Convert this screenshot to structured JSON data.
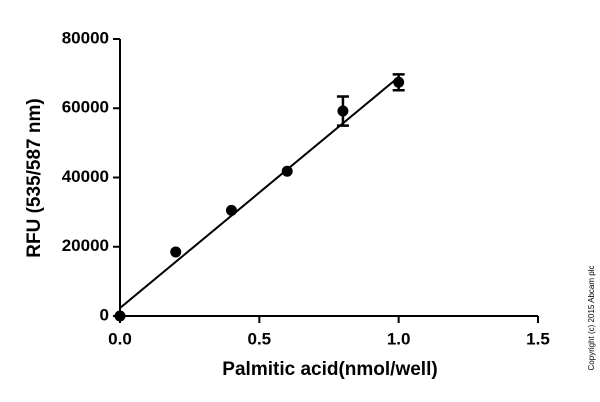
{
  "chart_data": {
    "type": "scatter",
    "xlabel": "Palmitic acid(nmol/well)",
    "ylabel": "RFU (535/587 nm)",
    "annotation": "Copyright (c) 2015 Abcam plc",
    "x": [
      0,
      0.2,
      0.4,
      0.6,
      0.8,
      1.0
    ],
    "series": [
      {
        "color": "#000000",
        "values": [
          0,
          18500,
          30500,
          41800,
          59200,
          67500
        ],
        "errors": [
          null,
          null,
          null,
          null,
          4200,
          2300
        ]
      }
    ],
    "fit": {
      "x": [
        0,
        1.0
      ],
      "values": [
        2300,
        69000
      ],
      "color": "#000000"
    },
    "xlim": [
      0,
      1.5
    ],
    "xticks": [
      {
        "value": 0,
        "label": "0.0"
      },
      0.5,
      {
        "value": 1.0,
        "label": "1.0"
      },
      1.5
    ],
    "ylim": [
      0,
      80000
    ],
    "yticks": [
      0,
      20000,
      40000,
      60000,
      80000
    ]
  }
}
